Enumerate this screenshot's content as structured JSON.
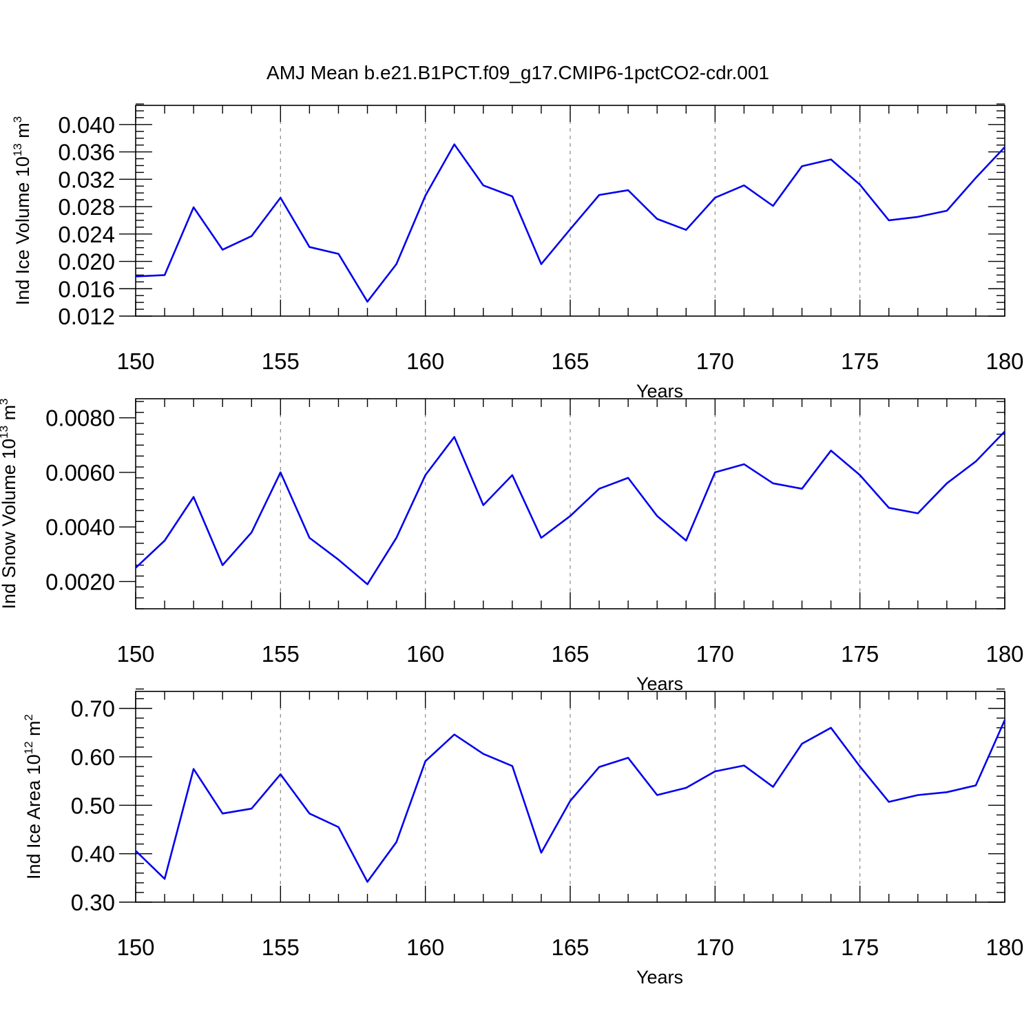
{
  "title": "AMJ Mean b.e21.B1PCT.f09_g17.CMIP6-1pctCO2-cdr.001",
  "line_color": "#0000ee",
  "chart_data": [
    {
      "type": "line",
      "title": "AMJ Mean b.e21.B1PCT.f09_g17.CMIP6-1pctCO2-cdr.001",
      "xlabel": "Years",
      "ylabel": "Ind Ice Volume 10",
      "ylabel_sup": "13",
      "ylabel_unit": "m",
      "ylabel_unit_sup": "3",
      "xlim": [
        150,
        180
      ],
      "ylim": [
        0.012,
        0.0428
      ],
      "xticks": [
        150,
        155,
        160,
        165,
        170,
        175,
        180
      ],
      "xtick_labels": [
        "150",
        "155",
        "160",
        "165",
        "170",
        "175",
        "180"
      ],
      "yticks": [
        0.012,
        0.016,
        0.02,
        0.024,
        0.028,
        0.032,
        0.036,
        0.04
      ],
      "ytick_labels": [
        "0.012",
        "0.016",
        "0.020",
        "0.024",
        "0.028",
        "0.032",
        "0.036",
        "0.040"
      ],
      "yminor_step": 0.001,
      "grid": "x-dashed",
      "series": [
        {
          "name": "Ind Ice Volume",
          "x": [
            150,
            151,
            152,
            153,
            154,
            155,
            156,
            157,
            158,
            159,
            160,
            161,
            162,
            163,
            164,
            165,
            166,
            167,
            168,
            169,
            170,
            171,
            172,
            173,
            174,
            175,
            176,
            177,
            178,
            179,
            180
          ],
          "values": [
            0.0178,
            0.018,
            0.0279,
            0.0217,
            0.0237,
            0.0293,
            0.0221,
            0.0211,
            0.0141,
            0.0196,
            0.0296,
            0.0371,
            0.0311,
            0.0295,
            0.0196,
            0.0247,
            0.0297,
            0.0304,
            0.0262,
            0.0246,
            0.0293,
            0.0311,
            0.0281,
            0.0339,
            0.0349,
            0.0312,
            0.026,
            0.0265,
            0.0274,
            0.0322,
            0.0367
          ]
        }
      ]
    },
    {
      "type": "line",
      "xlabel": "Years",
      "ylabel": "Ind Snow Volume 10",
      "ylabel_sup": "13",
      "ylabel_unit": "m",
      "ylabel_unit_sup": "3",
      "xlim": [
        150,
        180
      ],
      "ylim": [
        0.001,
        0.0087
      ],
      "xticks": [
        150,
        155,
        160,
        165,
        170,
        175,
        180
      ],
      "xtick_labels": [
        "150",
        "155",
        "160",
        "165",
        "170",
        "175",
        "180"
      ],
      "yticks": [
        0.002,
        0.004,
        0.006,
        0.008
      ],
      "ytick_labels": [
        "0.0020",
        "0.0040",
        "0.0060",
        "0.0080"
      ],
      "yminor_step": 0.0004,
      "grid": "x-dashed",
      "series": [
        {
          "name": "Ind Snow Volume",
          "x": [
            150,
            151,
            152,
            153,
            154,
            155,
            156,
            157,
            158,
            159,
            160,
            161,
            162,
            163,
            164,
            165,
            166,
            167,
            168,
            169,
            170,
            171,
            172,
            173,
            174,
            175,
            176,
            177,
            178,
            179,
            180
          ],
          "values": [
            0.0025,
            0.0035,
            0.0051,
            0.0026,
            0.0038,
            0.006,
            0.0036,
            0.0028,
            0.0019,
            0.0036,
            0.0059,
            0.0073,
            0.0048,
            0.0059,
            0.0036,
            0.0044,
            0.0054,
            0.0058,
            0.0044,
            0.0035,
            0.006,
            0.0063,
            0.0056,
            0.0054,
            0.0068,
            0.0059,
            0.0047,
            0.0045,
            0.0056,
            0.0064,
            0.0075
          ]
        }
      ]
    },
    {
      "type": "line",
      "xlabel": "Years",
      "ylabel": "Ind Ice Area 10",
      "ylabel_sup": "12",
      "ylabel_unit": "m",
      "ylabel_unit_sup": "2",
      "xlim": [
        150,
        180
      ],
      "ylim": [
        0.3,
        0.735
      ],
      "xticks": [
        150,
        155,
        160,
        165,
        170,
        175,
        180
      ],
      "xtick_labels": [
        "150",
        "155",
        "160",
        "165",
        "170",
        "175",
        "180"
      ],
      "yticks": [
        0.3,
        0.4,
        0.5,
        0.6,
        0.7
      ],
      "ytick_labels": [
        "0.30",
        "0.40",
        "0.50",
        "0.60",
        "0.70"
      ],
      "yminor_step": 0.02,
      "grid": "x-dashed",
      "series": [
        {
          "name": "Ind Ice Area",
          "x": [
            150,
            151,
            152,
            153,
            154,
            155,
            156,
            157,
            158,
            159,
            160,
            161,
            162,
            163,
            164,
            165,
            166,
            167,
            168,
            169,
            170,
            171,
            172,
            173,
            174,
            175,
            176,
            177,
            178,
            179,
            180
          ],
          "values": [
            0.406,
            0.348,
            0.575,
            0.483,
            0.493,
            0.564,
            0.483,
            0.455,
            0.342,
            0.424,
            0.591,
            0.646,
            0.606,
            0.581,
            0.402,
            0.509,
            0.579,
            0.598,
            0.521,
            0.536,
            0.57,
            0.582,
            0.538,
            0.627,
            0.66,
            0.58,
            0.507,
            0.521,
            0.527,
            0.541,
            0.676
          ]
        }
      ]
    }
  ]
}
